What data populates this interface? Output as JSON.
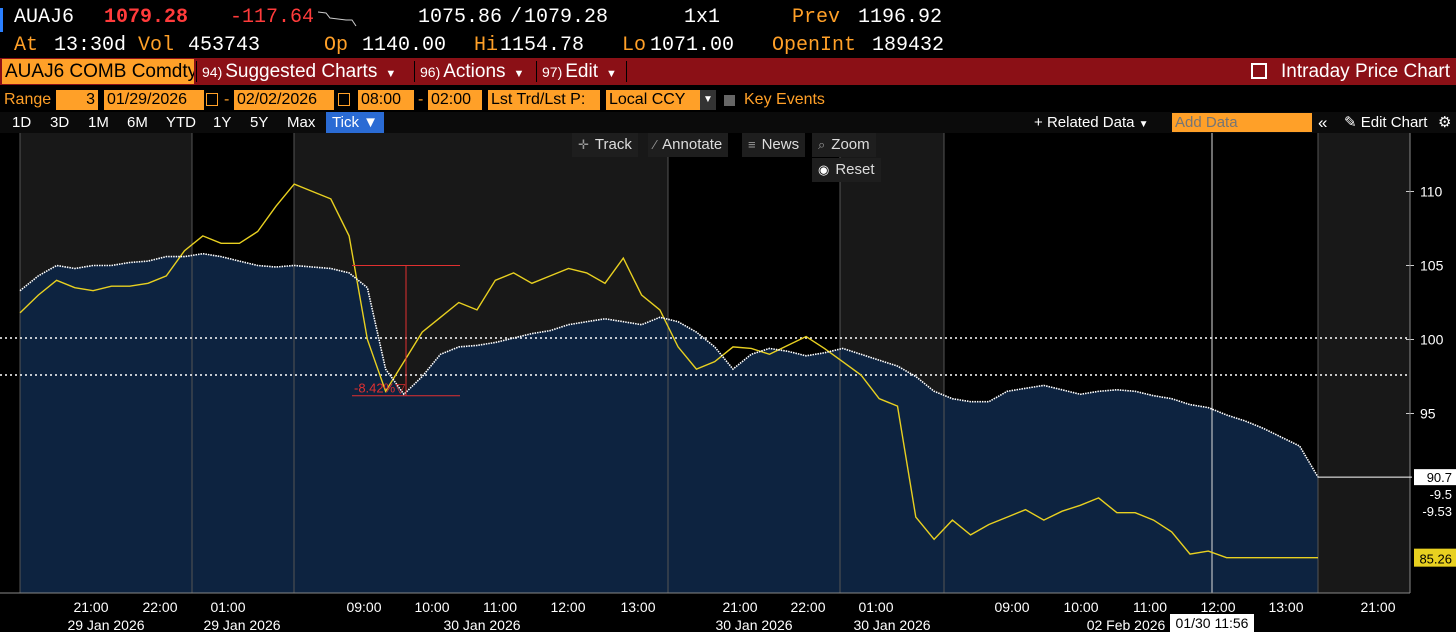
{
  "quote": {
    "ticker": "AUAJ6",
    "last": "1079.28",
    "change": "-117.64",
    "bid_ask": "1075.86",
    "bid_ask_sep": "/",
    "ask": "1079.28",
    "size": "1x1",
    "prev_label": "Prev",
    "prev": "1196.92",
    "at_label": "At",
    "time": "13:30d",
    "vol_label": "Vol",
    "vol": "453743",
    "op_label": "Op",
    "op": "1140.00",
    "hi_label": "Hi",
    "hi": "1154.78",
    "lo_label": "Lo",
    "lo": "1071.00",
    "oi_label": "OpenInt",
    "oi": "189432"
  },
  "menubar": {
    "security": "AUAJ6 COMB Comdty",
    "items": [
      {
        "num": "94)",
        "label": "Suggested Charts"
      },
      {
        "num": "96)",
        "label": "Actions"
      },
      {
        "num": "97)",
        "label": "Edit"
      }
    ],
    "title": "Intraday Price Chart"
  },
  "range": {
    "label": "Range",
    "value": "3",
    "start_date": "01/29/2026",
    "end_date": "02/02/2026",
    "start_time": "08:00",
    "end_time": "02:00",
    "price_type": "Lst Trd/Lst P:",
    "currency": "Local CCY",
    "key_events": "Key Events",
    "dash": "-"
  },
  "periods": [
    "1D",
    "3D",
    "1M",
    "6M",
    "YTD",
    "1Y",
    "5Y",
    "Max"
  ],
  "active_period": "Tick",
  "toolbar_right": {
    "related": "Related Data",
    "add_placeholder": "Add Data",
    "collapse": "«",
    "edit_chart": "Edit Chart"
  },
  "tools": {
    "track": "Track",
    "annotate": "Annotate",
    "news": "News",
    "zoom": "Zoom",
    "reset": "Reset"
  },
  "colors": {
    "orange": "#ffa028",
    "menu_red": "#8b1016",
    "area": "#0d2340",
    "yellow_line": "#e8d020",
    "measure": "#e03030"
  },
  "chart_data": {
    "type": "line",
    "y_ticks": [
      95,
      100,
      105,
      110
    ],
    "ylim": [
      80,
      113
    ],
    "x_labels": [
      "21:00",
      "22:00",
      "01:00",
      "09:00",
      "10:00",
      "11:00",
      "12:00",
      "13:00",
      "21:00",
      "22:00",
      "01:00",
      "09:00",
      "10:00",
      "11:00",
      "12:00",
      "13:00",
      "21:00"
    ],
    "date_labels": [
      "29 Jan 2026",
      "29 Jan 2026",
      "30 Jan 2026",
      "30 Jan 2026",
      "30 Jan 2026",
      "02 Feb 2026"
    ],
    "series": [
      {
        "values": [
          103.3,
          104.3,
          105.0,
          104.8,
          105.0,
          105.0,
          105.2,
          105.3,
          105.6,
          105.6,
          105.8,
          105.6,
          105.3,
          105.0,
          104.9,
          105.0,
          104.9,
          104.8,
          104.5,
          103.5,
          98.0,
          96.3,
          97.5,
          99.0,
          99.5,
          99.6,
          99.8,
          100.1,
          100.4,
          100.6,
          101.0,
          101.2,
          101.4,
          101.2,
          101.0,
          101.5,
          101.2,
          100.5,
          99.5,
          98.0,
          99.0,
          99.4,
          99.2,
          98.9,
          99.1,
          99.4,
          99.0,
          98.6,
          98.2,
          97.5,
          96.5,
          96.0,
          95.8,
          95.8,
          96.5,
          96.7,
          96.9,
          96.6,
          96.3,
          96.5,
          96.6,
          96.5,
          96.2,
          96.0,
          95.6,
          95.4,
          94.9,
          94.5,
          94.0,
          93.4,
          92.8,
          90.7
        ]
      },
      {
        "values": [
          101.8,
          103.0,
          104.0,
          103.5,
          103.3,
          103.6,
          103.6,
          103.8,
          104.3,
          106.0,
          107.0,
          106.5,
          106.5,
          107.3,
          109.0,
          110.5,
          110.0,
          109.5,
          107.0,
          100.0,
          96.5,
          98.5,
          100.5,
          101.5,
          102.5,
          102.0,
          104.0,
          104.5,
          103.8,
          104.3,
          104.8,
          104.5,
          103.8,
          105.5,
          103.0,
          102.0,
          99.5,
          98.0,
          98.5,
          99.5,
          99.4,
          99.0,
          99.6,
          100.2,
          99.4,
          98.5,
          97.6,
          96.0,
          95.5,
          88.0,
          86.5,
          87.8,
          86.8,
          87.5,
          88.0,
          88.5,
          87.8,
          88.4,
          88.8,
          89.3,
          88.3,
          88.3,
          87.8,
          87.0,
          85.5,
          85.7,
          85.26,
          85.26,
          85.26,
          85.26,
          85.26,
          85.26
        ]
      }
    ],
    "reference_lines": [
      100.1,
      97.6
    ],
    "annotation": {
      "label": "-8.42%",
      "from": 105.0,
      "to": 96.2
    },
    "price_tags": [
      "90.7",
      "-9.5",
      "-9.53",
      "85.26"
    ],
    "crosshair_time": "01/30 11:56"
  }
}
